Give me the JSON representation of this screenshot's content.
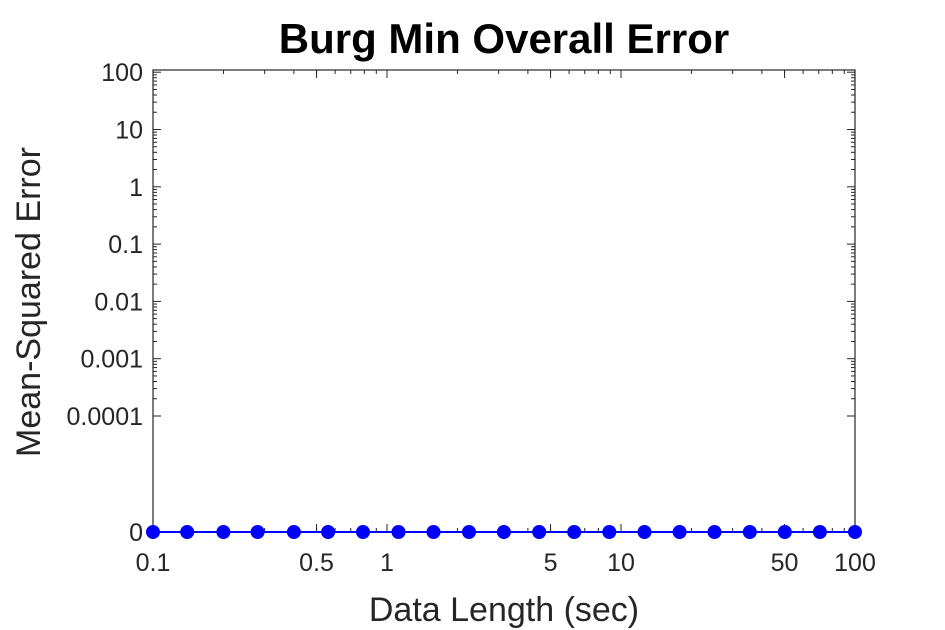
{
  "chart_data": {
    "type": "scatter",
    "title": "Burg Min Overall Error",
    "xlabel": "Data Length (sec)",
    "ylabel": "Mean-Squared Error",
    "x_scale": "log",
    "y_scale": "log",
    "xlim": [
      0.1,
      100
    ],
    "x_ticks": [
      {
        "value": 0.1,
        "label": "0.1"
      },
      {
        "value": 0.5,
        "label": "0.5"
      },
      {
        "value": 1,
        "label": "1"
      },
      {
        "value": 5,
        "label": "5"
      },
      {
        "value": 10,
        "label": "10"
      },
      {
        "value": 50,
        "label": "50"
      },
      {
        "value": 100,
        "label": "100"
      }
    ],
    "y_ticks": [
      {
        "value": 0,
        "label": "0"
      },
      {
        "value": 0.0001,
        "label": "0.0001"
      },
      {
        "value": 0.001,
        "label": "0.001"
      },
      {
        "value": 0.01,
        "label": "0.01"
      },
      {
        "value": 0.1,
        "label": "0.1"
      },
      {
        "value": 1,
        "label": "1"
      },
      {
        "value": 10,
        "label": "10"
      },
      {
        "value": 100,
        "label": "100"
      }
    ],
    "grid": false,
    "series": [
      {
        "color": "#0000ff",
        "marker": "circle",
        "x": [
          0.1,
          0.14,
          0.2,
          0.28,
          0.4,
          0.56,
          0.79,
          1.12,
          1.58,
          2.24,
          3.16,
          4.47,
          6.31,
          8.91,
          12.6,
          17.8,
          25.1,
          35.5,
          50.1,
          70.8,
          100
        ],
        "y": [
          0,
          0,
          0,
          0,
          0,
          0,
          0,
          0,
          0,
          0,
          0,
          0,
          0,
          0,
          0,
          0,
          0,
          0,
          0,
          0,
          0
        ]
      }
    ]
  }
}
